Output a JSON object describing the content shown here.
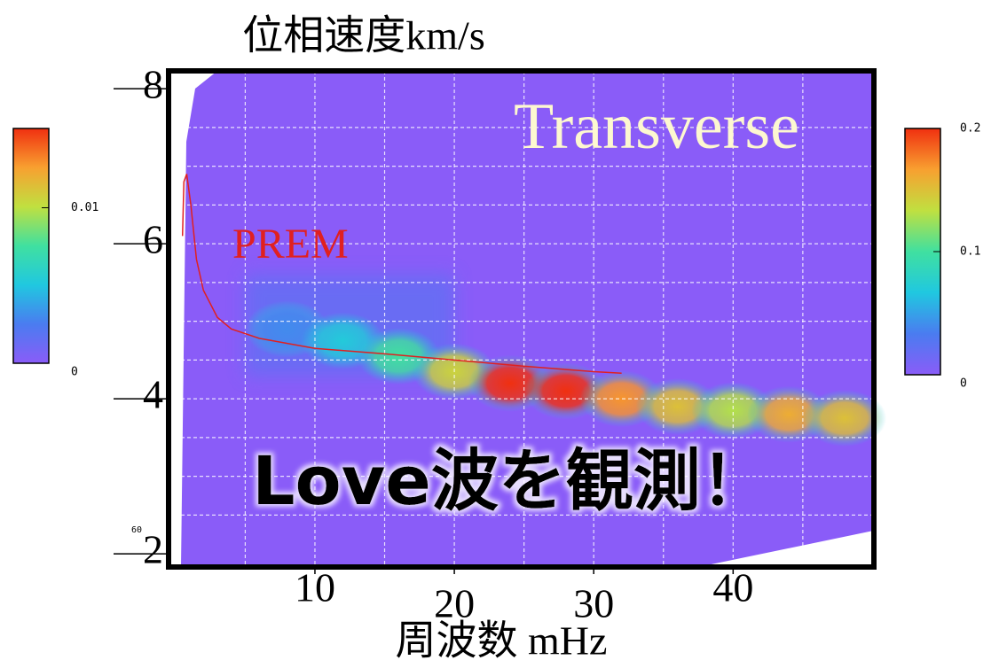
{
  "chart_data": {
    "type": "heatmap",
    "title": "Transverse",
    "ylabel": "位相速度km/s",
    "xlabel": "周波数 mHz",
    "xlim": [
      -0.5,
      50.1
    ],
    "ylim": [
      1.83,
      8.23
    ],
    "xticks": [
      10,
      20,
      30,
      40
    ],
    "yticks": [
      2,
      4,
      6,
      8
    ],
    "xgrid": [
      5,
      10,
      15,
      20,
      25,
      30,
      35,
      40,
      45
    ],
    "ygrid": [
      2.5,
      3,
      3.5,
      4,
      4.5,
      5,
      5.5,
      6,
      6.5,
      7,
      7.5
    ],
    "background": "#8a5cf8",
    "colormap": [
      "#8a5cf8",
      "#4a7cf0",
      "#20c8e0",
      "#40e0a0",
      "#c0e040",
      "#f8a030",
      "#f03010"
    ],
    "ridge": {
      "x": [
        8,
        12,
        16,
        20,
        24,
        28,
        32,
        36,
        40,
        44,
        48
      ],
      "y": [
        4.9,
        4.75,
        4.55,
        4.35,
        4.2,
        4.1,
        4.0,
        3.9,
        3.85,
        3.8,
        3.75
      ],
      "values": [
        0.04,
        0.07,
        0.1,
        0.14,
        0.2,
        0.2,
        0.17,
        0.15,
        0.13,
        0.16,
        0.15
      ]
    },
    "series": [
      {
        "name": "PREM",
        "color": "#e02020",
        "x": [
          0.5,
          0.6,
          0.8,
          1.1,
          1.5,
          2,
          3,
          4,
          6,
          10,
          15,
          20,
          25,
          30,
          32
        ],
        "values": [
          6.1,
          6.8,
          6.9,
          6.5,
          5.8,
          5.4,
          5.05,
          4.9,
          4.78,
          4.65,
          4.58,
          4.5,
          4.42,
          4.35,
          4.33
        ]
      }
    ],
    "annotations": [
      "Love波を観測！",
      "60"
    ],
    "colorbars": [
      {
        "lim": [
          0,
          0.0151
        ],
        "ticks": [
          0,
          0.01
        ]
      },
      {
        "lim": [
          0,
          0.2
        ],
        "ticks": [
          0,
          0.1,
          0.2
        ]
      }
    ]
  }
}
